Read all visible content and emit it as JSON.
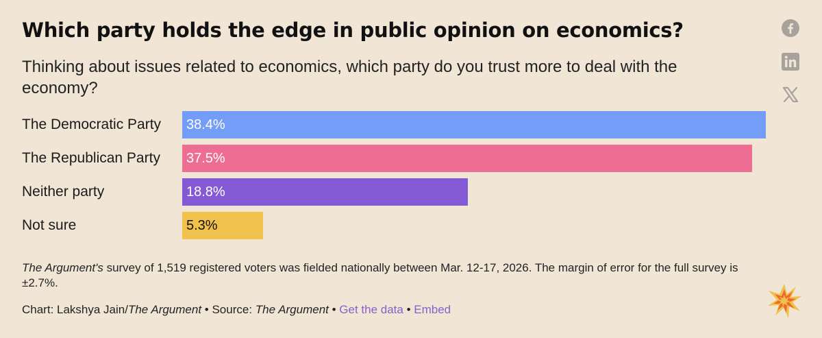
{
  "title": "Which party holds the edge in public opinion on economics?",
  "subtitle": "Thinking about issues related to economics, which party do you trust more to deal with the economy?",
  "chart_data": {
    "type": "bar",
    "orientation": "horizontal",
    "categories": [
      "The Democratic Party",
      "The Republican Party",
      "Neither party",
      "Not sure"
    ],
    "values": [
      38.4,
      37.5,
      18.8,
      5.3
    ],
    "value_labels": [
      "38.4%",
      "37.5%",
      "18.8%",
      "5.3%"
    ],
    "colors": [
      "#739df6",
      "#ee6d93",
      "#8459d4",
      "#f0c14b"
    ],
    "label_colors": [
      "#ffffff",
      "#ffffff",
      "#ffffff",
      "#111111"
    ],
    "title": "Which party holds the edge in public opinion on economics?",
    "xlabel": "",
    "ylabel": "",
    "xlim": [
      0,
      38.4
    ],
    "grid": false
  },
  "footer": {
    "note_source_italic": "The Argument's",
    "note_text": " survey of 1,519 registered voters was fielded nationally between Mar. 12-17, 2026. The margin of error for the full survey is ±2.7%.",
    "credit_prefix": "Chart: Lakshya Jain/",
    "credit_org": "The Argument",
    "separator": " • ",
    "source_prefix": "Source: ",
    "source_org": "The Argument",
    "get_data_label": "Get the data",
    "embed_label": "Embed"
  },
  "social": {
    "icons": [
      "facebook-icon",
      "linkedin-icon",
      "x-icon"
    ]
  },
  "colors": {
    "background": "#f1e6d6",
    "link": "#8760c8",
    "icon": "#a8a29c"
  }
}
